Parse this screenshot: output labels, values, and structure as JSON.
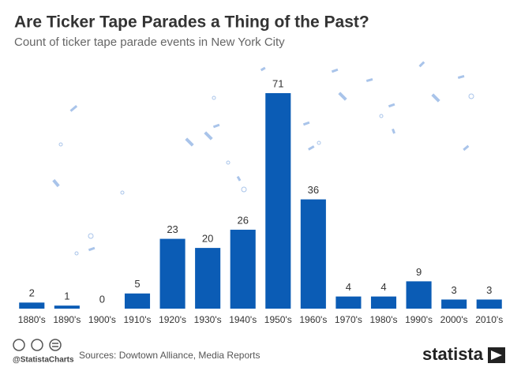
{
  "chart_data": {
    "type": "bar",
    "title": "Are Ticker Tape Parades a Thing of the Past?",
    "subtitle": "Count of ticker tape parade events in New York City",
    "categories": [
      "1880's",
      "1890's",
      "1900's",
      "1910's",
      "1920's",
      "1930's",
      "1940's",
      "1950's",
      "1960's",
      "1970's",
      "1980's",
      "1990's",
      "2000's",
      "2010's"
    ],
    "values": [
      2,
      1,
      0,
      5,
      23,
      20,
      26,
      71,
      36,
      4,
      4,
      9,
      3,
      3
    ],
    "color": "#0b5cb5",
    "source": "Sources: Dowtown Alliance, Media Reports",
    "handle": "@StatistaCharts",
    "brand": "statista"
  }
}
